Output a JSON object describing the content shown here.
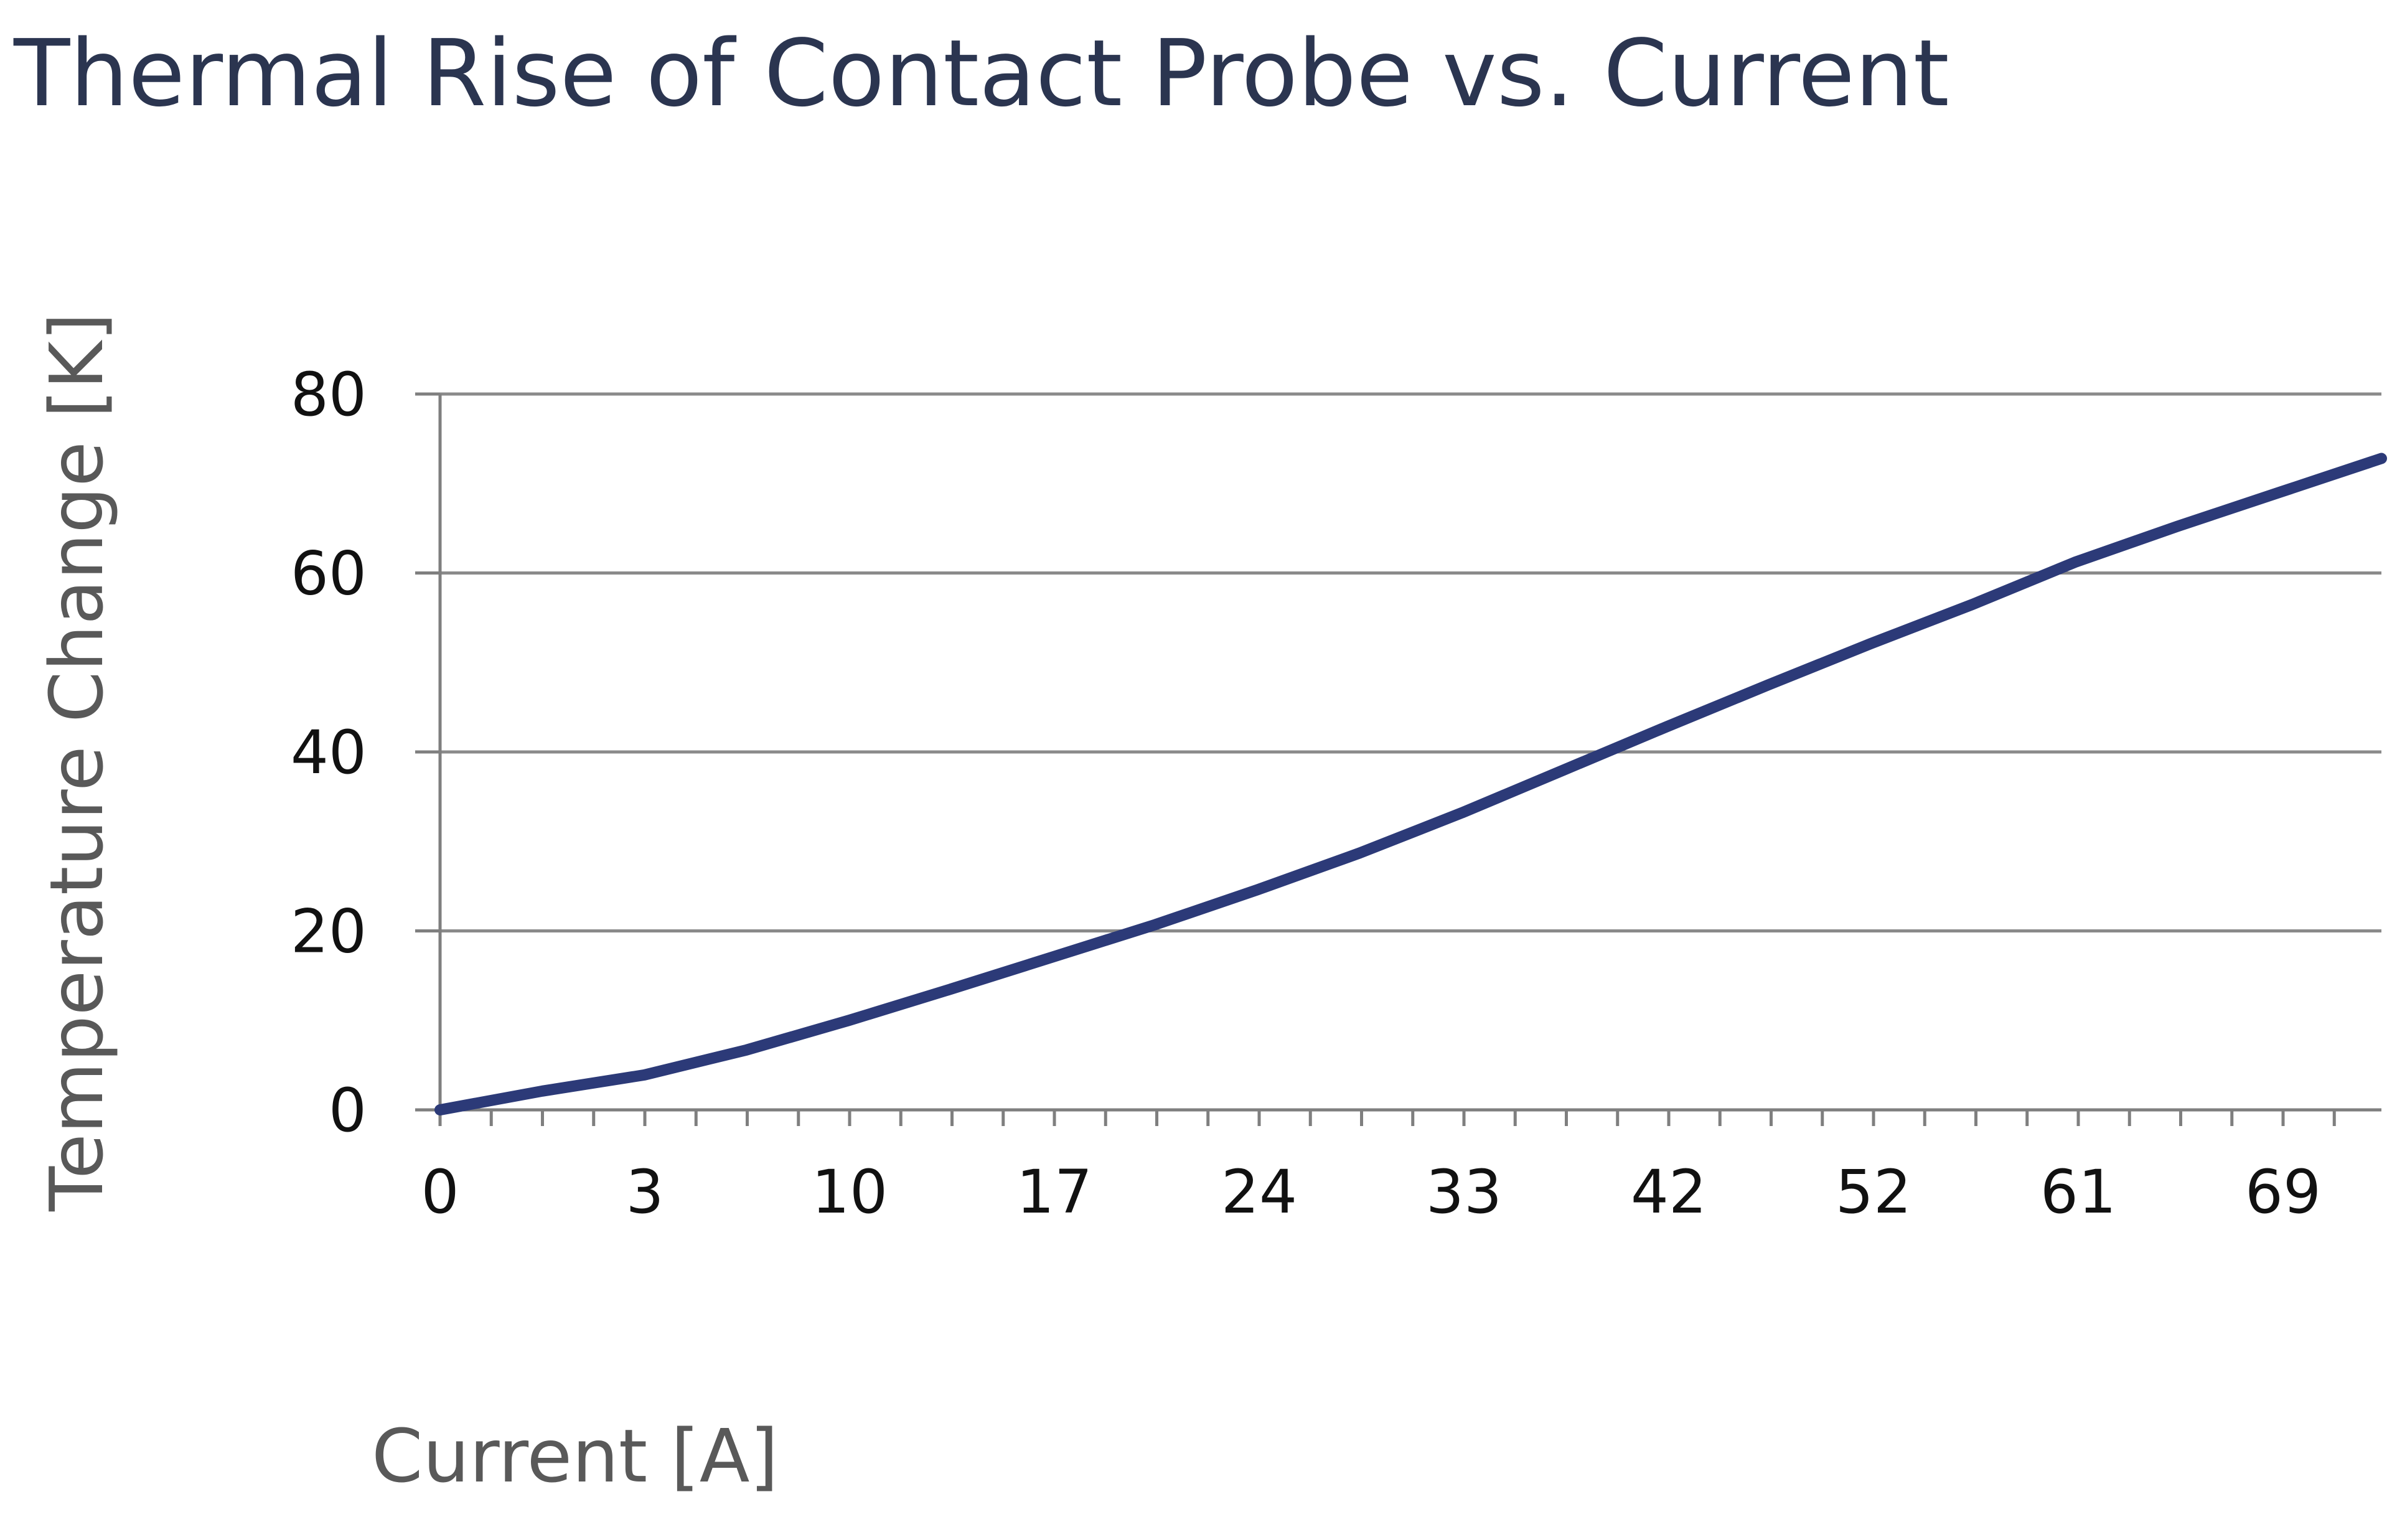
{
  "chart_data": {
    "type": "line",
    "title": "Thermal Rise of Contact Probe vs. Current",
    "xlabel": "Current [A]",
    "ylabel": "Temperature Change [K]",
    "x_tick_labels": [
      "0",
      "3",
      "10",
      "17",
      "24",
      "33",
      "42",
      "52",
      "61",
      "69"
    ],
    "y_ticks": [
      0,
      20,
      40,
      60,
      80
    ],
    "ylim": [
      0,
      80
    ],
    "grid": "horizontal",
    "legend": "none",
    "series": [
      {
        "values": [
          0,
          2.1,
          3.9,
          6.7,
          10.0,
          13.5,
          17.1,
          20.7,
          24.6,
          28.7,
          33.2,
          38.0,
          42.8,
          47.5,
          52.1,
          56.5,
          61.2,
          65.2,
          69.0,
          72.8
        ]
      }
    ],
    "colors": {
      "line": "#2c3a78",
      "grid": "#8a8a8a",
      "axis": "#7f7f7f",
      "title": "#2b3550",
      "axis_label": "#595959",
      "tick_label": "#111111"
    }
  }
}
